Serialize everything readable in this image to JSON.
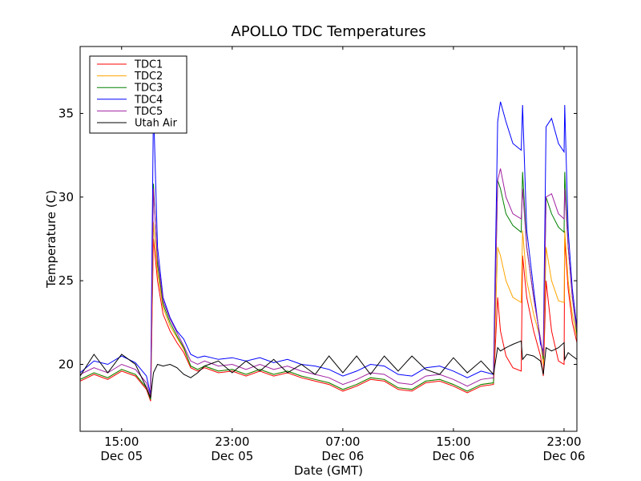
{
  "chart_data": {
    "type": "line",
    "title": "APOLLO TDC Temperatures",
    "xlabel": "Date (GMT)",
    "ylabel": "Temperature (C)",
    "x_units": "hours since 00:00 Dec 05 (GMT)",
    "xlim": [
      12,
      47.93
    ],
    "ylim": [
      16,
      39
    ],
    "grid": false,
    "legend_placement": "top-left",
    "yticks": [
      20,
      25,
      30,
      35
    ],
    "xticks": [
      {
        "value": 15,
        "time": "15:00",
        "date": "Dec 05"
      },
      {
        "value": 23,
        "time": "23:00",
        "date": "Dec 05"
      },
      {
        "value": 31,
        "time": "07:00",
        "date": "Dec 06"
      },
      {
        "value": 39,
        "time": "15:00",
        "date": "Dec 06"
      },
      {
        "value": 47,
        "time": "23:00",
        "date": "Dec 06"
      }
    ],
    "x": [
      12,
      13,
      14,
      15,
      16,
      16.8,
      17.1,
      17.3,
      17.6,
      18,
      18.5,
      19,
      19.5,
      20,
      20.5,
      21,
      22,
      23,
      24,
      25,
      26,
      27,
      28,
      29,
      30,
      31,
      32,
      33,
      34,
      35,
      36,
      37,
      38,
      39,
      40,
      41,
      41.9,
      42.2,
      42.4,
      42.8,
      43.3,
      43.9,
      44.0,
      44.3,
      44.8,
      45.3,
      45.5,
      45.7,
      46.1,
      46.6,
      47.0,
      47.05,
      47.3,
      47.6,
      47.93
    ],
    "series": [
      {
        "name": "TDC1",
        "color": "#ff0000",
        "values": [
          19.0,
          19.4,
          19.1,
          19.6,
          19.3,
          18.5,
          17.8,
          27.5,
          25.0,
          23.0,
          22.0,
          21.3,
          20.7,
          19.8,
          19.6,
          19.8,
          19.5,
          19.6,
          19.3,
          19.6,
          19.3,
          19.5,
          19.2,
          19.0,
          18.8,
          18.4,
          18.7,
          19.1,
          19.0,
          18.5,
          18.4,
          18.9,
          19.0,
          18.7,
          18.3,
          18.7,
          18.8,
          24.0,
          22.0,
          20.5,
          19.8,
          19.6,
          26.5,
          24.0,
          22.0,
          20.5,
          19.3,
          25.0,
          22.0,
          20.2,
          20.0,
          27.5,
          24.5,
          22.5,
          21.3
        ]
      },
      {
        "name": "TDC2",
        "color": "#ffa500",
        "values": [
          19.1,
          19.5,
          19.2,
          19.7,
          19.4,
          18.6,
          17.9,
          28.5,
          25.5,
          23.4,
          22.3,
          21.6,
          20.9,
          19.9,
          19.7,
          19.9,
          19.6,
          19.7,
          19.4,
          19.7,
          19.4,
          19.6,
          19.3,
          19.1,
          18.9,
          18.5,
          18.8,
          19.2,
          19.1,
          18.6,
          18.5,
          19.0,
          19.1,
          18.8,
          18.4,
          18.8,
          18.9,
          27.0,
          26.5,
          25.0,
          24.0,
          23.7,
          28.0,
          25.0,
          23.0,
          21.5,
          20.0,
          27.0,
          25.0,
          23.8,
          23.7,
          28.0,
          25.0,
          23.0,
          21.6
        ]
      },
      {
        "name": "TDC3",
        "color": "#008000",
        "values": [
          19.1,
          19.5,
          19.2,
          19.7,
          19.4,
          18.6,
          17.9,
          30.8,
          26.0,
          23.6,
          22.5,
          21.7,
          21.0,
          19.9,
          19.7,
          19.9,
          19.6,
          19.7,
          19.4,
          19.7,
          19.4,
          19.6,
          19.3,
          19.1,
          18.9,
          18.5,
          18.8,
          19.2,
          19.1,
          18.6,
          18.5,
          19.0,
          19.1,
          18.8,
          18.4,
          18.8,
          18.9,
          31.0,
          30.5,
          29.0,
          28.3,
          27.9,
          31.5,
          27.0,
          24.0,
          21.5,
          20.3,
          30.0,
          29.0,
          28.2,
          27.9,
          31.5,
          27.0,
          24.0,
          21.8
        ]
      },
      {
        "name": "TDC4",
        "color": "#0000ff",
        "values": [
          19.5,
          20.2,
          20.0,
          20.5,
          20.1,
          19.3,
          18.2,
          35.5,
          27.0,
          24.0,
          22.8,
          22.0,
          21.5,
          20.6,
          20.4,
          20.5,
          20.3,
          20.4,
          20.2,
          20.4,
          20.1,
          20.3,
          20.0,
          19.9,
          19.7,
          19.3,
          19.6,
          20.0,
          19.9,
          19.4,
          19.3,
          19.8,
          19.9,
          19.6,
          19.2,
          19.6,
          19.4,
          34.5,
          35.7,
          34.5,
          33.2,
          32.8,
          35.5,
          28.0,
          24.5,
          21.2,
          20.8,
          34.2,
          34.7,
          33.2,
          32.7,
          35.5,
          28.0,
          24.5,
          22.2
        ]
      },
      {
        "name": "TDC5",
        "color": "#a020a0",
        "values": [
          19.4,
          19.8,
          19.5,
          20.0,
          19.7,
          18.9,
          18.1,
          30.5,
          26.3,
          23.8,
          22.7,
          21.9,
          21.1,
          20.2,
          20.0,
          20.2,
          19.9,
          20.0,
          19.7,
          20.0,
          19.7,
          19.9,
          19.6,
          19.4,
          19.2,
          18.8,
          19.1,
          19.5,
          19.4,
          18.9,
          18.8,
          19.3,
          19.4,
          19.1,
          18.7,
          19.1,
          19.2,
          31.0,
          31.7,
          30.0,
          29.0,
          28.7,
          30.5,
          27.0,
          24.0,
          21.5,
          20.5,
          30.0,
          30.2,
          29.0,
          28.7,
          30.5,
          27.0,
          24.0,
          22.0
        ]
      },
      {
        "name": "Utah Air",
        "color": "#000000",
        "values": [
          19.3,
          20.6,
          19.5,
          20.6,
          20.0,
          18.6,
          18.0,
          19.5,
          20.0,
          19.9,
          20.0,
          19.8,
          19.4,
          19.2,
          19.5,
          19.9,
          20.2,
          19.5,
          20.2,
          19.6,
          20.3,
          19.5,
          20.0,
          19.4,
          20.5,
          19.5,
          20.5,
          19.4,
          20.5,
          19.6,
          20.5,
          19.7,
          19.4,
          20.4,
          19.5,
          20.2,
          19.4,
          21.0,
          20.8,
          21.0,
          21.2,
          21.4,
          20.3,
          20.6,
          20.5,
          20.2,
          19.4,
          21.0,
          20.8,
          21.0,
          21.3,
          20.3,
          20.7,
          20.5,
          20.3
        ]
      }
    ]
  }
}
